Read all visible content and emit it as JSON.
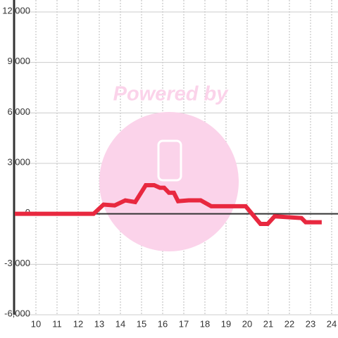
{
  "chart_data": {
    "type": "line",
    "watermark": "Powered by",
    "x": [
      9.0,
      12.73,
      13.2,
      13.73,
      14.23,
      14.7,
      15.2,
      15.6,
      15.87,
      16.07,
      16.3,
      16.53,
      16.73,
      17.23,
      17.8,
      18.3,
      19.93,
      20.23,
      20.63,
      20.97,
      21.3,
      21.97,
      22.57,
      22.77,
      23.53
    ],
    "series": [
      {
        "color": "#e8283f",
        "values": [
          0,
          0,
          550,
          500,
          800,
          700,
          1700,
          1700,
          1550,
          1550,
          1250,
          1250,
          750,
          800,
          800,
          450,
          450,
          0,
          -600,
          -600,
          -150,
          -200,
          -250,
          -500,
          -500
        ]
      }
    ],
    "xlim": [
      9,
      24.3
    ],
    "xticks": [
      10,
      11,
      12,
      13,
      14,
      15,
      16,
      17,
      18,
      19,
      20,
      21,
      22,
      23,
      24
    ],
    "ylim": [
      -6000,
      12000
    ],
    "yticks": [
      {
        "value": -6000,
        "label": "-6,000"
      },
      {
        "value": -3000,
        "label": "-3,000"
      },
      0,
      {
        "value": 3000,
        "label": "3,000"
      },
      {
        "value": 6000,
        "label": "6,000"
      },
      {
        "value": 9000,
        "label": "9,000"
      },
      {
        "value": 12000,
        "label": "12,000"
      }
    ],
    "grid": true
  }
}
